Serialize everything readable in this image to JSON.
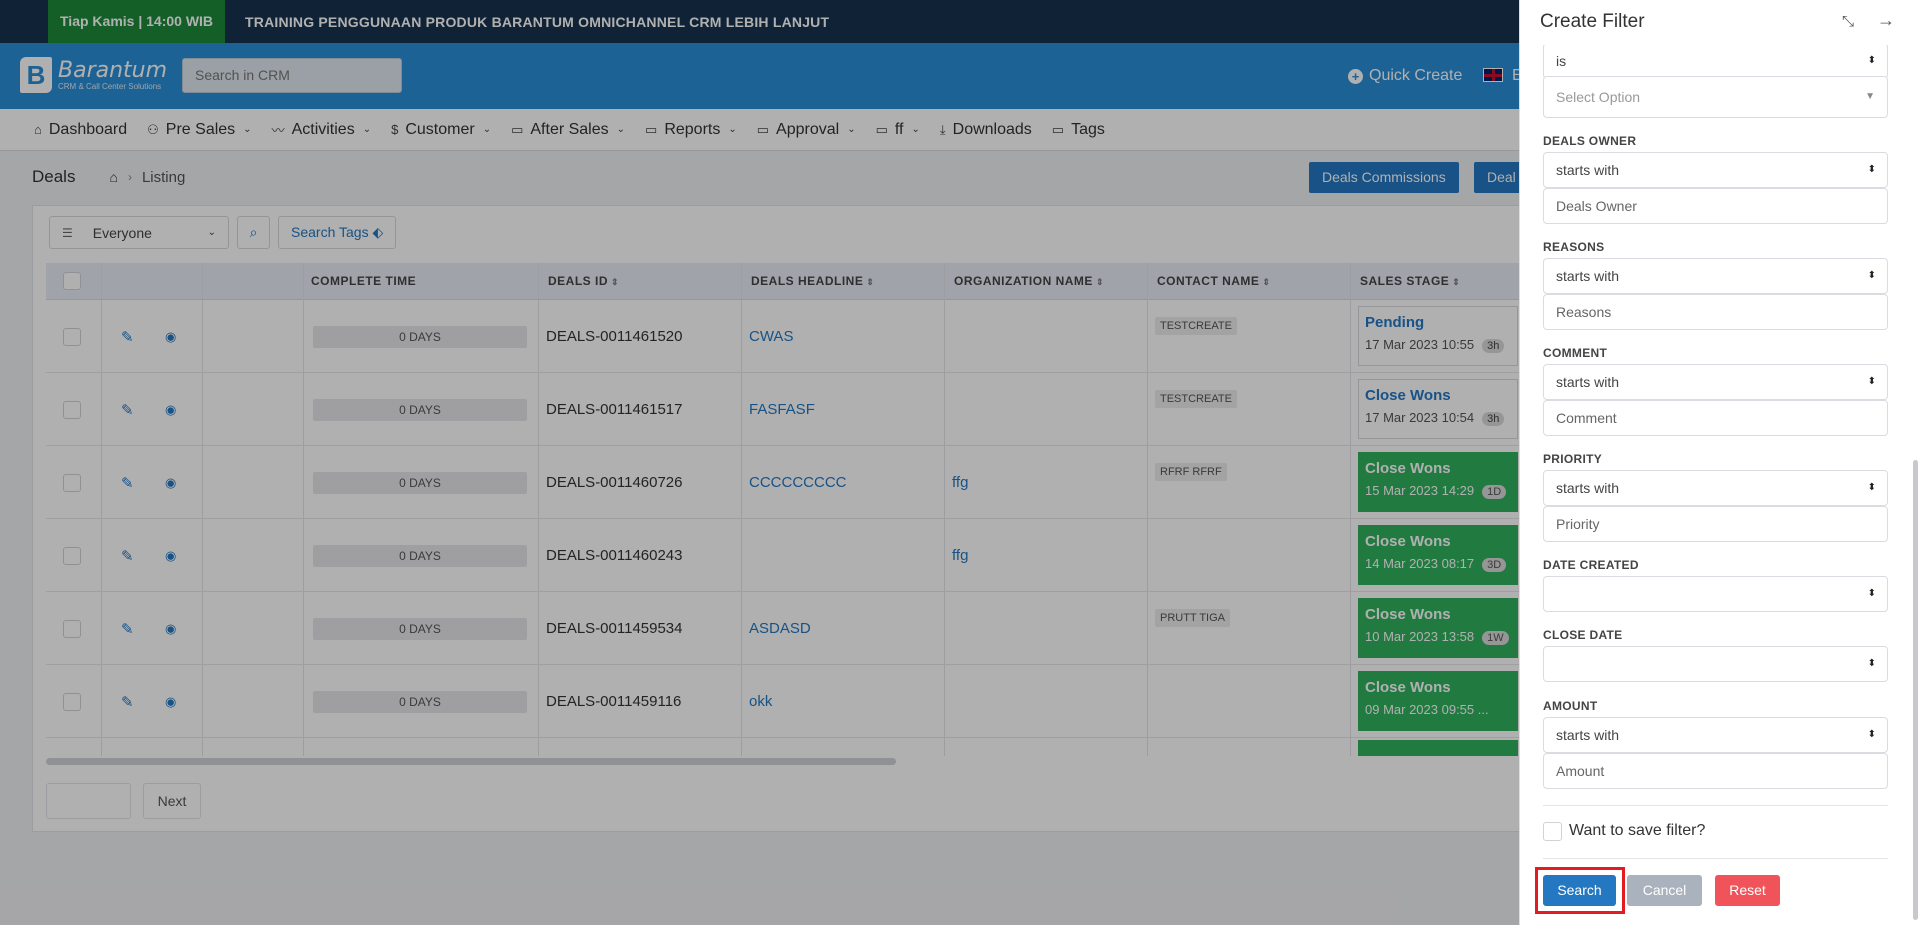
{
  "banner": {
    "badge": "Tiap Kamis | 14:00 WIB",
    "message": "TRAINING PENGGUNAAN PRODUK BARANTUM OMNICHANNEL CRM LEBIH LANJUT"
  },
  "header": {
    "logo_mark": "B",
    "logo_name": "Barantum",
    "logo_sub": "CRM & Call Center Solutions",
    "search_placeholder": "Search in CRM",
    "quick_create": "Quick Create",
    "lang_initial": "E"
  },
  "nav": {
    "items": [
      {
        "label": "Dashboard",
        "icon": "home-icon",
        "glyph": "⌂",
        "has_dropdown": false
      },
      {
        "label": "Pre Sales",
        "icon": "users-icon",
        "glyph": "⚇",
        "has_dropdown": true
      },
      {
        "label": "Activities",
        "icon": "activity-icon",
        "glyph": "〰",
        "has_dropdown": true
      },
      {
        "label": "Customer",
        "icon": "dollar-icon",
        "glyph": "$",
        "has_dropdown": true
      },
      {
        "label": "After Sales",
        "icon": "folder-icon",
        "glyph": "▭",
        "has_dropdown": true
      },
      {
        "label": "Reports",
        "icon": "folder-icon",
        "glyph": "▭",
        "has_dropdown": true
      },
      {
        "label": "Approval",
        "icon": "folder-icon",
        "glyph": "▭",
        "has_dropdown": true
      },
      {
        "label": "ff",
        "icon": "folder-icon",
        "glyph": "▭",
        "has_dropdown": true
      },
      {
        "label": "Downloads",
        "icon": "download-icon",
        "glyph": "⤓",
        "has_dropdown": false
      },
      {
        "label": "Tags",
        "icon": "folder-icon",
        "glyph": "▭",
        "has_dropdown": false
      }
    ]
  },
  "breadcrumb": {
    "title": "Deals",
    "page": "Listing"
  },
  "actions": {
    "commissions": "Deals Commissions",
    "deal_partial": "Deal"
  },
  "filters": {
    "owner_select": "Everyone",
    "search_tags": "Search Tags"
  },
  "table": {
    "columns": [
      "COMPLETE TIME",
      "DEALS ID",
      "DEALS HEADLINE",
      "ORGANIZATION NAME",
      "CONTACT NAME",
      "SALES STAGE"
    ],
    "rows": [
      {
        "complete": "0 DAYS",
        "id": "DEALS-0011461520",
        "headline": "CWAS",
        "org": "",
        "contact": "TESTCREATE",
        "stage": "Pending",
        "date": "17 Mar 2023 10:55",
        "age": "3h",
        "won": false
      },
      {
        "complete": "0 DAYS",
        "id": "DEALS-0011461517",
        "headline": "FASFASF",
        "org": "",
        "contact": "TESTCREATE",
        "stage": "Close Wons",
        "date": "17 Mar 2023 10:54",
        "age": "3h",
        "won": false
      },
      {
        "complete": "0 DAYS",
        "id": "DEALS-0011460726",
        "headline": "CCCCCCCCC",
        "org": "ffg",
        "contact": "RFRF RFRF",
        "stage": "Close Wons",
        "date": "15 Mar 2023 14:29",
        "age": "1D",
        "won": true
      },
      {
        "complete": "0 DAYS",
        "id": "DEALS-0011460243",
        "headline": "",
        "org": "ffg",
        "contact": "",
        "stage": "Close Wons",
        "date": "14 Mar 2023 08:17",
        "age": "3D",
        "won": true
      },
      {
        "complete": "0 DAYS",
        "id": "DEALS-0011459534",
        "headline": "ASDASD",
        "org": "",
        "contact": "PRUTT TIGA",
        "stage": "Close Wons",
        "date": "10 Mar 2023 13:58",
        "age": "1W",
        "won": true
      },
      {
        "complete": "0 DAYS",
        "id": "DEALS-0011459116",
        "headline": "okk",
        "org": "",
        "contact": "",
        "stage": "Close Wons",
        "date": "09 Mar 2023 09:55 ...",
        "age": "",
        "won": true
      }
    ]
  },
  "pager": {
    "next": "Next"
  },
  "panel": {
    "title": "Create Filter",
    "top_operator": "is",
    "top_option_placeholder": "Select Option",
    "fields": [
      {
        "label": "DEALS OWNER",
        "operator": "starts with",
        "placeholder": "Deals Owner"
      },
      {
        "label": "REASONS",
        "operator": "starts with",
        "placeholder": "Reasons"
      },
      {
        "label": "COMMENT",
        "operator": "starts with",
        "placeholder": "Comment"
      },
      {
        "label": "PRIORITY",
        "operator": "starts with",
        "placeholder": "Priority"
      }
    ],
    "date_created_label": "DATE CREATED",
    "close_date_label": "CLOSE DATE",
    "amount": {
      "label": "AMOUNT",
      "operator": "starts with",
      "placeholder": "Amount"
    },
    "save_filter": "Want to save filter?",
    "search_btn": "Search",
    "cancel_btn": "Cancel",
    "reset_btn": "Reset"
  }
}
